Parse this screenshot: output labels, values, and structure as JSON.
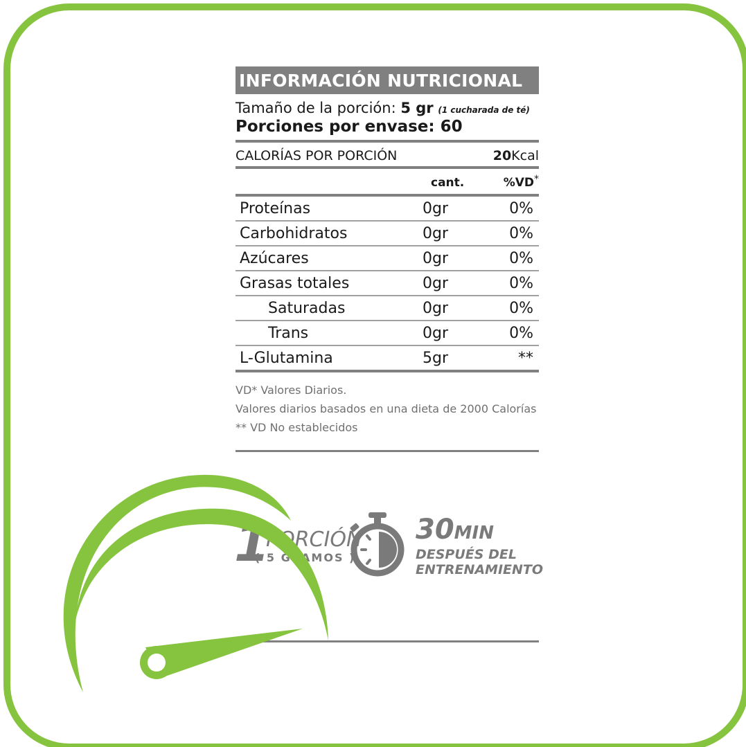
{
  "colors": {
    "brand_green": "#86c440",
    "header_gray": "#808080",
    "icon_gray": "#7a7a7a"
  },
  "label": {
    "title": "INFORMACIÓN NUTRICIONAL",
    "serving_prefix": "Tamaño de la porción: ",
    "serving_value": "5 gr",
    "serving_note": "(1 cucharada de té)",
    "portions": "Porciones por envase: 60",
    "calories_label": "CALORÍAS POR PORCIÓN",
    "calories_value": "20",
    "calories_unit": "Kcal",
    "col_amount": "cant.",
    "col_dv": "%VD",
    "col_dv_mark": "*",
    "rows": [
      {
        "name": "Proteínas",
        "amount": "0gr",
        "dv": "0%"
      },
      {
        "name": "Carbohidratos",
        "amount": "0gr",
        "dv": "0%"
      },
      {
        "name": "Azúcares",
        "amount": "0gr",
        "dv": "0%"
      },
      {
        "name": "Grasas totales",
        "amount": "0gr",
        "dv": "0%"
      },
      {
        "name": "Saturadas",
        "amount": "0gr",
        "dv": "0%"
      },
      {
        "name": "Trans",
        "amount": "0gr",
        "dv": "0%"
      },
      {
        "name": "L-Glutamina",
        "amount": "5gr",
        "dv": "**"
      }
    ],
    "footnotes": [
      "VD* Valores Diarios.",
      "Valores diarios basados en una dieta de 2000 Calorías",
      "**  VD No establecidos"
    ]
  },
  "usage": {
    "portion_number": "1",
    "portion_word": "PORCIÓN",
    "portion_grams": "( 5 GRAMOS )",
    "timer_icon": "stopwatch-icon",
    "time_value": "30",
    "time_unit": "MIN",
    "time_line1": "DESPUÉS DEL",
    "time_line2": "ENTRENAMIENTO"
  }
}
